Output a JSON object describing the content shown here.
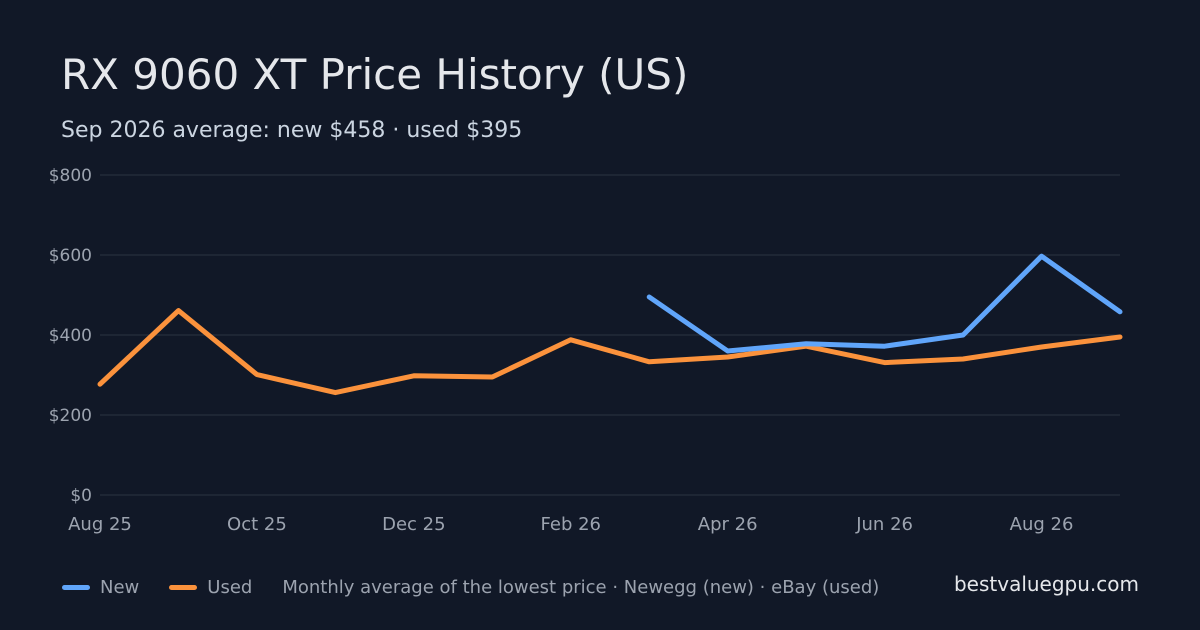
{
  "header": {
    "title": "RX 9060 XT Price History (US)",
    "subtitle": "Sep 2026 average: new $458 · used $395"
  },
  "legend": {
    "new_label": "New",
    "used_label": "Used",
    "note": "Monthly average of the lowest price · Newegg (new) · eBay (used)"
  },
  "brand": "bestvaluegpu.com",
  "colors": {
    "new": "#60a5fa",
    "used": "#fb923c",
    "grid": "#2a3342",
    "tick_text": "#9ca3af"
  },
  "chart_data": {
    "type": "line",
    "x": [
      "Aug 25",
      "Sep 25",
      "Oct 25",
      "Nov 25",
      "Dec 25",
      "Jan 26",
      "Feb 26",
      "Mar 26",
      "Apr 26",
      "May 26",
      "Jun 26",
      "Jul 26",
      "Aug 26",
      "Sep 26"
    ],
    "x_tick_labels": [
      "Aug 25",
      "Oct 25",
      "Dec 25",
      "Feb 26",
      "Apr 26",
      "Jun 26",
      "Aug 26"
    ],
    "y_tick_labels": [
      "$0",
      "$200",
      "$400",
      "$600",
      "$800"
    ],
    "ylim": [
      0,
      800
    ],
    "yticks": [
      0,
      200,
      400,
      600,
      800
    ],
    "grid": true,
    "legend_position": "bottom-left",
    "series": [
      {
        "name": "New",
        "color_key": "new",
        "values": [
          null,
          null,
          null,
          null,
          null,
          null,
          null,
          495,
          360,
          378,
          372,
          400,
          597,
          458
        ]
      },
      {
        "name": "Used",
        "color_key": "used",
        "values": [
          277,
          461,
          301,
          256,
          298,
          295,
          388,
          333,
          345,
          372,
          331,
          340,
          370,
          395
        ]
      }
    ]
  }
}
